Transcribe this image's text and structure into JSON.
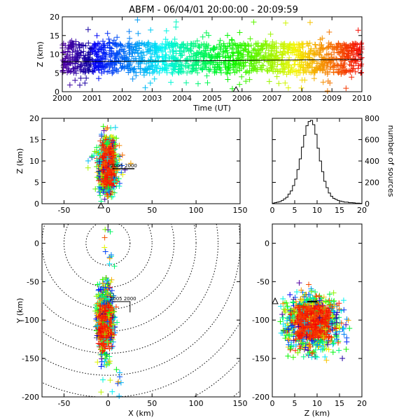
{
  "title": "ABFM - 06/04/01 20:00:00 - 20:09:59",
  "chart_data": [
    {
      "panel": "time-height",
      "type": "scatter",
      "xlabel": "Time (UT)",
      "ylabel": "Z (km)",
      "xlim": [
        2000,
        2010
      ],
      "ylim": [
        0,
        20
      ],
      "xticks": [
        "2000",
        "2001",
        "2002",
        "2003",
        "2004",
        "2005",
        "2006",
        "2007",
        "2008",
        "2009",
        "2010"
      ],
      "yticks": [
        "0",
        "5",
        "10",
        "15",
        "20"
      ],
      "color_by": "time (rainbow: purple to red)",
      "core_band_z": [
        5,
        13
      ],
      "trend_line": {
        "x": [
          2000,
          2010
        ],
        "y": [
          8,
          8.6
        ]
      },
      "marker": "triangle at time 2005.8"
    },
    {
      "panel": "x-height",
      "type": "scatter",
      "xlabel": "",
      "ylabel": "Z (km)",
      "xlim": [
        -75,
        150
      ],
      "ylim": [
        0,
        20
      ],
      "xticks": [
        "-50",
        "0",
        "50",
        "100",
        "150"
      ],
      "yticks": [
        "0",
        "5",
        "10",
        "15",
        "20"
      ],
      "cluster": {
        "x_center": 0,
        "x_spread": 8,
        "z_range": [
          1,
          20
        ]
      },
      "station_labels": [
        "2005",
        "2000"
      ]
    },
    {
      "panel": "altitude-histogram",
      "type": "line",
      "xlabel": "",
      "ylabel": "number of sources",
      "ylabel_side": "right",
      "xlim": [
        0,
        20
      ],
      "ylim": [
        0,
        800
      ],
      "xticks": [
        "0",
        "5",
        "10",
        "15",
        "20"
      ],
      "yticks": [
        "0",
        "200",
        "400",
        "600",
        "800"
      ],
      "x": [
        0,
        0.5,
        1,
        1.5,
        2,
        2.5,
        3,
        3.5,
        4,
        4.5,
        5,
        5.5,
        6,
        6.5,
        7,
        7.5,
        8,
        8.5,
        9,
        9.5,
        10,
        10.5,
        11,
        11.5,
        12,
        12.5,
        13,
        13.5,
        14,
        14.5,
        15,
        15.5,
        16,
        16.5,
        17,
        17.5,
        18,
        18.5,
        19,
        19.5,
        20
      ],
      "y": [
        5,
        10,
        15,
        20,
        30,
        45,
        60,
        90,
        120,
        170,
        230,
        320,
        420,
        530,
        640,
        730,
        770,
        780,
        740,
        650,
        520,
        400,
        300,
        210,
        150,
        100,
        70,
        50,
        40,
        30,
        25,
        20,
        15,
        15,
        10,
        10,
        8,
        5,
        5,
        3,
        3
      ]
    },
    {
      "panel": "plan-view",
      "type": "scatter",
      "xlabel": "X (km)",
      "ylabel": "Y (km)",
      "xlim": [
        -75,
        150
      ],
      "ylim": [
        -200,
        25
      ],
      "xticks": [
        "-50",
        "0",
        "50",
        "100",
        "150"
      ],
      "yticks": [
        "-200",
        "-150",
        "-100",
        "-50",
        "0"
      ],
      "range_rings_center": [
        0,
        0
      ],
      "range_rings_radius_km": [
        25,
        50,
        75,
        100,
        125,
        150,
        175,
        200,
        225
      ],
      "cluster": {
        "x_center": -3,
        "y_center": -100,
        "x_spread": 8,
        "y_range": [
          -160,
          -45
        ]
      },
      "station_labels": [
        "2005",
        "2000"
      ]
    },
    {
      "panel": "z-y",
      "type": "scatter",
      "xlabel": "Z (km)",
      "ylabel": "",
      "xlim": [
        0,
        20
      ],
      "ylim": [
        -200,
        25
      ],
      "xticks": [
        "0",
        "5",
        "10",
        "15",
        "20"
      ],
      "yticks": [
        "-200",
        "-150",
        "-100",
        "-50",
        "0"
      ],
      "cluster": {
        "z_center": 9,
        "y_center": -103,
        "z_spread": 3,
        "y_spread": 18
      }
    }
  ]
}
